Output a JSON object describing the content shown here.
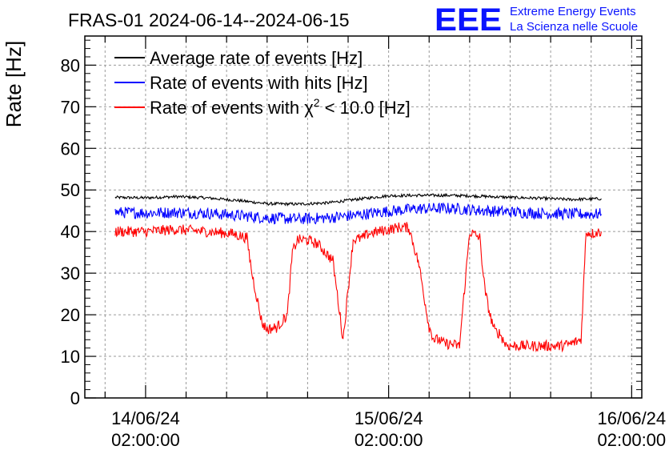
{
  "chart_data": {
    "type": "line",
    "title": "FRAS-01 2024-06-14--2024-06-15",
    "xlabel": "",
    "ylabel": "Rate [Hz]",
    "ylim": [
      0,
      87
    ],
    "xlim": [
      "2024-06-13 20:00",
      "2024-06-16 03:00"
    ],
    "grid": true,
    "legend_position": "top-left",
    "y_ticks": [
      "0",
      "10",
      "20",
      "30",
      "40",
      "50",
      "60",
      "70",
      "80"
    ],
    "x_ticks": [
      {
        "x": "2024-06-14 02:00",
        "date": "14/06/24",
        "time": "02:00:00"
      },
      {
        "x": "2024-06-15 02:00",
        "date": "15/06/24",
        "time": "02:00:00"
      },
      {
        "x": "2024-06-16 02:00",
        "date": "16/06/24",
        "time": "02:00:00"
      }
    ],
    "logo": {
      "mark": "EEE",
      "line1": "Extreme Energy Events",
      "line2": "La Scienza nelle Scuole"
    },
    "series": [
      {
        "name": "Average rate of events [Hz]",
        "color": "#000000",
        "x": [
          "2024-06-13 23:00",
          "2024-06-14 02:00",
          "2024-06-14 05:00",
          "2024-06-14 08:00",
          "2024-06-14 11:00",
          "2024-06-14 14:00",
          "2024-06-14 17:00",
          "2024-06-14 20:00",
          "2024-06-14 23:00",
          "2024-06-15 02:00",
          "2024-06-15 05:00",
          "2024-06-15 08:00",
          "2024-06-15 11:00",
          "2024-06-15 14:00",
          "2024-06-15 17:00",
          "2024-06-15 20:00",
          "2024-06-15 23:00"
        ],
        "values": [
          48.2,
          48.1,
          48.4,
          48.1,
          47.5,
          46.7,
          46.6,
          46.9,
          47.8,
          48.6,
          48.7,
          48.7,
          48.5,
          48.2,
          48.0,
          47.7,
          47.9
        ]
      },
      {
        "name": "Rate of events with hits [Hz]",
        "color": "#0000ff",
        "x": [
          "2024-06-13 23:00",
          "2024-06-14 02:00",
          "2024-06-14 05:00",
          "2024-06-14 08:00",
          "2024-06-14 11:00",
          "2024-06-14 14:00",
          "2024-06-14 17:00",
          "2024-06-14 20:00",
          "2024-06-14 23:00",
          "2024-06-15 02:00",
          "2024-06-15 05:00",
          "2024-06-15 08:00",
          "2024-06-15 11:00",
          "2024-06-15 14:00",
          "2024-06-15 17:00",
          "2024-06-15 20:00",
          "2024-06-15 23:00"
        ],
        "values": [
          44.6,
          44.5,
          44.6,
          44.4,
          43.9,
          43.3,
          43.0,
          43.3,
          44.0,
          44.9,
          45.5,
          45.6,
          45.1,
          44.7,
          44.4,
          44.2,
          44.2
        ]
      },
      {
        "name": "Rate of events with χ² < 10.0 [Hz]",
        "name_prefix": "Rate of events with ",
        "name_symbol": "χ",
        "name_sup": "2",
        "name_suffix": " < 10.0 [Hz]",
        "color": "#ff0000",
        "x": [
          "2024-06-13 23:00",
          "2024-06-14 02:00",
          "2024-06-14 05:00",
          "2024-06-14 08:00",
          "2024-06-14 10:30",
          "2024-06-14 12:00",
          "2024-06-14 12:30",
          "2024-06-14 13:00",
          "2024-06-14 13:30",
          "2024-06-14 14:00",
          "2024-06-14 15:00",
          "2024-06-14 16:00",
          "2024-06-14 16:30",
          "2024-06-14 17:00",
          "2024-06-14 18:00",
          "2024-06-14 19:00",
          "2024-06-14 20:30",
          "2024-06-14 21:30",
          "2024-06-14 22:30",
          "2024-06-14 23:30",
          "2024-06-15 00:00",
          "2024-06-15 01:00",
          "2024-06-15 02:00",
          "2024-06-15 03:00",
          "2024-06-15 04:00",
          "2024-06-15 05:00",
          "2024-06-15 06:00",
          "2024-06-15 06:30",
          "2024-06-15 07:00",
          "2024-06-15 07:30",
          "2024-06-15 08:00",
          "2024-06-15 09:00",
          "2024-06-15 10:00",
          "2024-06-15 11:00",
          "2024-06-15 11:30",
          "2024-06-15 12:00",
          "2024-06-15 12:30",
          "2024-06-15 13:00",
          "2024-06-15 13:30",
          "2024-06-15 14:00",
          "2024-06-15 15:00",
          "2024-06-15 16:00",
          "2024-06-15 17:00",
          "2024-06-15 18:00",
          "2024-06-15 19:00",
          "2024-06-15 20:00",
          "2024-06-15 21:00",
          "2024-06-15 21:30",
          "2024-06-15 22:00",
          "2024-06-15 23:00"
        ],
        "values": [
          40.0,
          40.0,
          40.5,
          40.0,
          39.5,
          38.5,
          30.0,
          24.0,
          18.0,
          16.5,
          17.0,
          20.0,
          35.0,
          38.0,
          38.0,
          37.0,
          33.0,
          14.0,
          38.0,
          38.5,
          39.5,
          40.0,
          40.5,
          41.0,
          41.0,
          32.0,
          17.0,
          14.0,
          14.0,
          13.0,
          13.0,
          12.5,
          40.0,
          38.5,
          26.0,
          20.0,
          16.0,
          15.5,
          13.0,
          12.5,
          12.5,
          12.5,
          12.5,
          12.5,
          12.5,
          13.0,
          14.0,
          40.0,
          39.5,
          40.0
        ]
      }
    ]
  }
}
